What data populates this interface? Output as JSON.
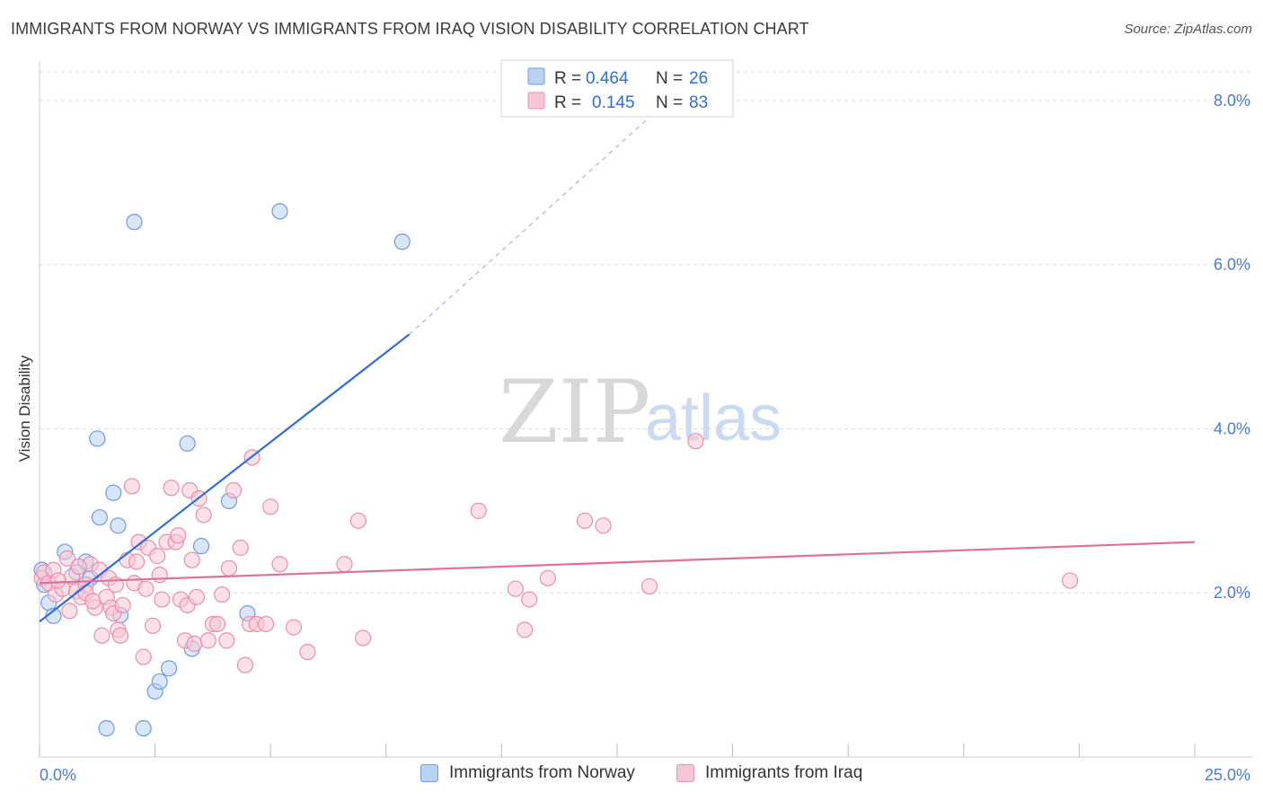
{
  "header": {
    "title": "IMMIGRANTS FROM NORWAY VS IMMIGRANTS FROM IRAQ VISION DISABILITY CORRELATION CHART",
    "source": "Source: ZipAtlas.com"
  },
  "watermark": {
    "zip": "ZIP",
    "atlas": "atlas"
  },
  "legend_box": {
    "rows": [
      {
        "r_label": "R =",
        "r_value": "0.464",
        "n_label": "N =",
        "n_value": "26"
      },
      {
        "r_label": "R =",
        "r_value": "0.145",
        "n_label": "N =",
        "n_value": "83"
      }
    ]
  },
  "bottom_legend": {
    "norway": "Immigrants from Norway",
    "iraq": "Immigrants from Iraq"
  },
  "colors": {
    "norway_fill": "#b9d1f3",
    "norway_stroke": "#6f9be0",
    "norway_line": "#2f6fd0",
    "iraq_fill": "#f7c6d6",
    "iraq_stroke": "#e890ae",
    "iraq_line": "#e0709a",
    "tick_text": "#4a7bd0",
    "grid": "#dddddd"
  },
  "chart_data": {
    "type": "scatter",
    "title": "IMMIGRANTS FROM NORWAY VS IMMIGRANTS FROM IRAQ VISION DISABILITY CORRELATION CHART",
    "xlabel": "",
    "ylabel": "Vision Disability",
    "xlim": [
      0,
      25
    ],
    "ylim": [
      0,
      8.35
    ],
    "x_tick_labels": [
      {
        "value": 0,
        "label": "0.0%"
      },
      {
        "value": 25,
        "label": "25.0%"
      }
    ],
    "y_tick_labels": [
      {
        "value": 2,
        "label": "2.0%"
      },
      {
        "value": 4,
        "label": "4.0%"
      },
      {
        "value": 6,
        "label": "6.0%"
      },
      {
        "value": 8,
        "label": "8.0%"
      }
    ],
    "grid": true,
    "legend_position": "top-center",
    "series": [
      {
        "name": "Immigrants from Norway",
        "color": "#6f9be0",
        "points": [
          [
            0.05,
            2.28
          ],
          [
            0.1,
            2.1
          ],
          [
            0.2,
            1.88
          ],
          [
            0.3,
            1.72
          ],
          [
            0.55,
            2.5
          ],
          [
            0.8,
            2.25
          ],
          [
            1.0,
            2.38
          ],
          [
            1.1,
            2.18
          ],
          [
            1.25,
            3.88
          ],
          [
            1.3,
            2.92
          ],
          [
            1.6,
            3.22
          ],
          [
            1.7,
            2.82
          ],
          [
            1.75,
            1.73
          ],
          [
            2.05,
            6.52
          ],
          [
            2.25,
            0.35
          ],
          [
            2.5,
            0.8
          ],
          [
            2.6,
            0.92
          ],
          [
            2.8,
            1.08
          ],
          [
            3.2,
            3.82
          ],
          [
            3.3,
            1.32
          ],
          [
            3.5,
            2.57
          ],
          [
            4.1,
            3.12
          ],
          [
            4.5,
            1.75
          ],
          [
            5.2,
            6.65
          ],
          [
            1.45,
            0.35
          ],
          [
            7.85,
            6.28
          ]
        ],
        "trend": {
          "x": [
            0,
            8.0
          ],
          "y": [
            1.65,
            5.15
          ],
          "dashed_to": [
            13.5,
            7.95
          ]
        }
      },
      {
        "name": "Immigrants from Iraq",
        "color": "#e890ae",
        "points": [
          [
            0.05,
            2.18
          ],
          [
            0.1,
            2.25
          ],
          [
            0.2,
            2.12
          ],
          [
            0.3,
            2.28
          ],
          [
            0.35,
            1.98
          ],
          [
            0.5,
            2.05
          ],
          [
            0.6,
            2.42
          ],
          [
            0.7,
            2.2
          ],
          [
            0.8,
            2.02
          ],
          [
            0.9,
            1.95
          ],
          [
            1.0,
            2.1
          ],
          [
            1.1,
            2.35
          ],
          [
            1.2,
            1.82
          ],
          [
            1.3,
            2.28
          ],
          [
            1.35,
            1.48
          ],
          [
            1.45,
            1.95
          ],
          [
            1.5,
            2.18
          ],
          [
            1.55,
            1.82
          ],
          [
            1.6,
            1.75
          ],
          [
            1.7,
            1.55
          ],
          [
            1.75,
            1.48
          ],
          [
            1.8,
            1.85
          ],
          [
            1.9,
            2.4
          ],
          [
            2.0,
            3.3
          ],
          [
            2.05,
            2.12
          ],
          [
            2.1,
            2.38
          ],
          [
            2.15,
            2.62
          ],
          [
            2.25,
            1.22
          ],
          [
            2.35,
            2.55
          ],
          [
            2.45,
            1.6
          ],
          [
            2.55,
            2.45
          ],
          [
            2.6,
            2.22
          ],
          [
            2.65,
            1.92
          ],
          [
            2.75,
            2.62
          ],
          [
            2.85,
            3.28
          ],
          [
            2.95,
            2.62
          ],
          [
            3.05,
            1.92
          ],
          [
            3.15,
            1.42
          ],
          [
            3.2,
            1.85
          ],
          [
            3.25,
            3.25
          ],
          [
            3.3,
            2.4
          ],
          [
            3.35,
            1.38
          ],
          [
            3.4,
            1.95
          ],
          [
            3.45,
            3.15
          ],
          [
            3.55,
            2.95
          ],
          [
            3.65,
            1.42
          ],
          [
            3.75,
            1.62
          ],
          [
            3.85,
            1.62
          ],
          [
            3.95,
            1.98
          ],
          [
            4.05,
            1.42
          ],
          [
            4.1,
            2.3
          ],
          [
            4.2,
            3.25
          ],
          [
            4.35,
            2.55
          ],
          [
            4.45,
            1.12
          ],
          [
            4.55,
            1.62
          ],
          [
            4.6,
            3.65
          ],
          [
            4.7,
            1.62
          ],
          [
            4.9,
            1.62
          ],
          [
            5.0,
            3.05
          ],
          [
            5.2,
            2.35
          ],
          [
            5.5,
            1.58
          ],
          [
            5.8,
            1.28
          ],
          [
            6.6,
            2.35
          ],
          [
            6.9,
            2.88
          ],
          [
            7.0,
            1.45
          ],
          [
            9.5,
            3.0
          ],
          [
            10.3,
            2.05
          ],
          [
            10.5,
            1.55
          ],
          [
            10.6,
            1.92
          ],
          [
            11.0,
            2.18
          ],
          [
            11.8,
            2.88
          ],
          [
            12.2,
            2.82
          ],
          [
            13.2,
            2.08
          ],
          [
            14.2,
            3.85
          ],
          [
            22.3,
            2.15
          ],
          [
            1.0,
            2.0
          ],
          [
            0.4,
            2.15
          ],
          [
            0.65,
            1.78
          ],
          [
            2.3,
            2.05
          ],
          [
            3.0,
            2.7
          ],
          [
            1.15,
            1.9
          ],
          [
            0.85,
            2.32
          ],
          [
            1.65,
            2.1
          ]
        ],
        "trend": {
          "x": [
            0,
            25
          ],
          "y": [
            2.12,
            2.62
          ]
        }
      }
    ]
  }
}
